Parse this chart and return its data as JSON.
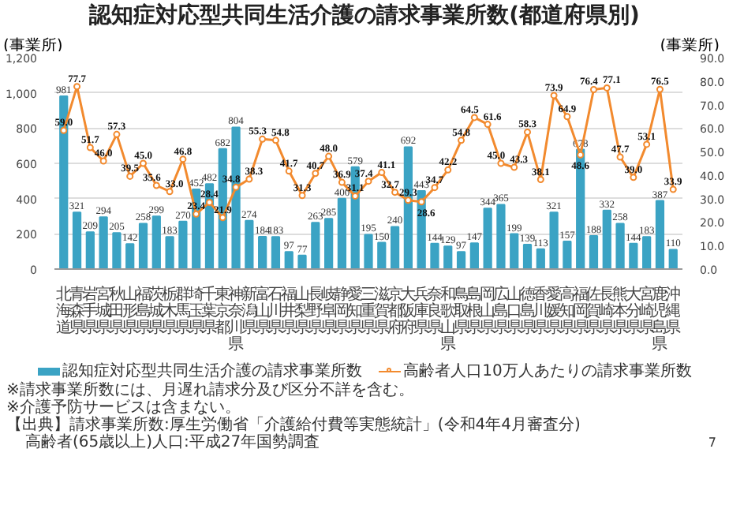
{
  "chart_data": {
    "type": "bar",
    "title": "認知症対応型共同生活介護の請求事業所数(都道府県別)",
    "ylabel": "(事業所)",
    "y2label": "(事業所)",
    "categories": [
      "北海道",
      "青森県",
      "岩手県",
      "宮城県",
      "秋田県",
      "山形県",
      "福島県",
      "茨城県",
      "栃木県",
      "群馬県",
      "埼玉県",
      "千葉県",
      "東京都",
      "神奈川県",
      "新潟県",
      "富山県",
      "石川県",
      "福井県",
      "山梨県",
      "長野県",
      "岐阜県",
      "静岡県",
      "愛知県",
      "三重県",
      "滋賀県",
      "京都府",
      "大阪府",
      "兵庫県",
      "奈良県",
      "和歌山県",
      "鳥取県",
      "島根県",
      "岡山県",
      "広島県",
      "山口県",
      "徳島県",
      "香川県",
      "愛媛県",
      "高知県",
      "福岡県",
      "佐賀県",
      "長崎県",
      "熊本県",
      "大分県",
      "宮崎県",
      "鹿児島県",
      "沖縄県"
    ],
    "series": [
      {
        "name": "認知症対応型共同生活介護の請求事業所数",
        "color": "#3ba3c4",
        "values": [
          981,
          321,
          209,
          294,
          205,
          142,
          258,
          299,
          183,
          270,
          452,
          482,
          682,
          804,
          274,
          184,
          183,
          97,
          77,
          263,
          285,
          400,
          579,
          195,
          150,
          240,
          692,
          443,
          144,
          129,
          97,
          147,
          344,
          365,
          199,
          139,
          113,
          321,
          157,
          678,
          188,
          332,
          258,
          144,
          183,
          387,
          110
        ]
      },
      {
        "name": "高齢者人口10万人あたりの請求事業所数",
        "type": "line",
        "axis": "y2",
        "color": "#f28a2e",
        "marker": "circle",
        "values": [
          59.0,
          77.7,
          51.7,
          46.0,
          57.3,
          39.5,
          45.0,
          35.6,
          33.0,
          46.8,
          23.4,
          28.4,
          21.9,
          34.8,
          38.3,
          55.3,
          54.8,
          41.7,
          31.3,
          40.7,
          48.0,
          36.9,
          31.1,
          37.4,
          41.1,
          32.7,
          29.3,
          28.6,
          34.7,
          42.2,
          54.8,
          64.5,
          61.6,
          45.0,
          43.3,
          58.3,
          38.1,
          73.9,
          64.9,
          48.6,
          76.4,
          77.1,
          47.7,
          39.0,
          53.1,
          76.5,
          33.9
        ],
        "value_labels": [
          "59.0",
          "77.7",
          "51.7",
          "46.0",
          "57.3",
          "39.5",
          "45.0",
          "35.6",
          "33.0",
          "46.8",
          "23.4",
          "28.4",
          "21.9",
          "34.8",
          "38.3",
          "55.3",
          "54.8",
          "41.7",
          "31.3",
          "40.7",
          "48.0",
          "36.9",
          "31.1",
          "37.4",
          "41.1",
          "32.7",
          "29.3",
          "28.6",
          "34.7",
          "42.2",
          "54.8",
          "64.5",
          "61.6",
          "45.0",
          "43.3",
          "58.3",
          "38.1",
          "73.9",
          "64.9",
          "48.6",
          "76.4",
          "77.1",
          "47.7",
          "39.0",
          "53.1",
          "76.5",
          "33.9"
        ]
      }
    ],
    "ylim": [
      0,
      1200
    ],
    "yticks": [
      0,
      {
        "value": 200,
        "label": "200"
      },
      {
        "value": 400,
        "label": "400"
      },
      {
        "value": 600,
        "label": "600"
      },
      {
        "value": 800,
        "label": "800"
      },
      {
        "value": 1000,
        "label": "1,000"
      },
      {
        "value": 1200,
        "label": "1,200"
      }
    ],
    "y2lim": [
      0,
      90
    ],
    "y2ticks": [
      {
        "value": 0,
        "label": "0.0"
      },
      {
        "value": 10,
        "label": "10.0"
      },
      {
        "value": 20,
        "label": "20.0"
      },
      {
        "value": 30,
        "label": "30.0"
      },
      {
        "value": 40,
        "label": "40.0"
      },
      {
        "value": 50,
        "label": "50.0"
      },
      {
        "value": 60,
        "label": "60.0"
      },
      {
        "value": 70,
        "label": "70.0"
      },
      {
        "value": 80,
        "label": "80.0"
      },
      {
        "value": 90,
        "label": "90.0"
      }
    ],
    "grid": "y",
    "legend": "bottom",
    "data_labels": true,
    "annotations": [
      "※請求事業所数には、月遅れ請求分及び区分不詳を含む。",
      "※介護予防サービスは含まない。",
      "【出典】請求事業所数:厚生労働省「介護給付費等実態統計」(令和4年4月審査分)",
      "高齢者(65歳以上)人口:平成27年国勢調査",
      "7"
    ]
  }
}
